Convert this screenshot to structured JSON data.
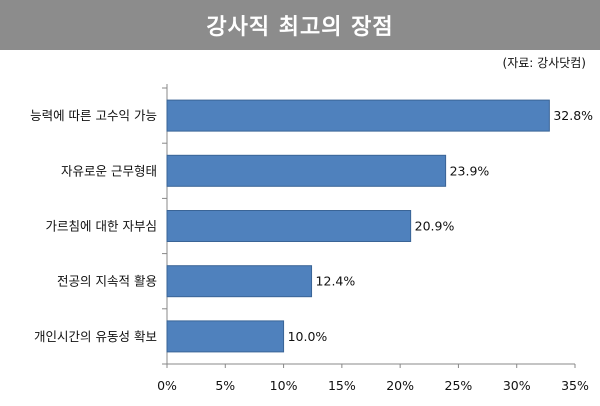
{
  "title": "강사직 최고의 장점",
  "source": "(자료: 강사닷컴)",
  "colors": {
    "bar": "#4f81bd",
    "bar_edge": "#3a6496",
    "title_bg": "#8c8c8c",
    "axis": "#888888"
  },
  "chart_data": {
    "type": "bar",
    "orientation": "horizontal",
    "title": "강사직 최고의 장점",
    "categories": [
      "능력에 따른 고수익 가능",
      "자유로운 근무형태",
      "가르침에 대한 자부심",
      "전공의 지속적 활용",
      "개인시간의 유동성 확보"
    ],
    "values": [
      32.8,
      23.9,
      20.9,
      12.4,
      10.0
    ],
    "value_labels": [
      "32.8%",
      "23.9%",
      "20.9%",
      "12.4%",
      "10.0%"
    ],
    "xlim": [
      0,
      35
    ],
    "xticks": [
      "0%",
      "5%",
      "10%",
      "15%",
      "20%",
      "25%",
      "30%",
      "35%"
    ],
    "grid": false,
    "legend": "none"
  }
}
